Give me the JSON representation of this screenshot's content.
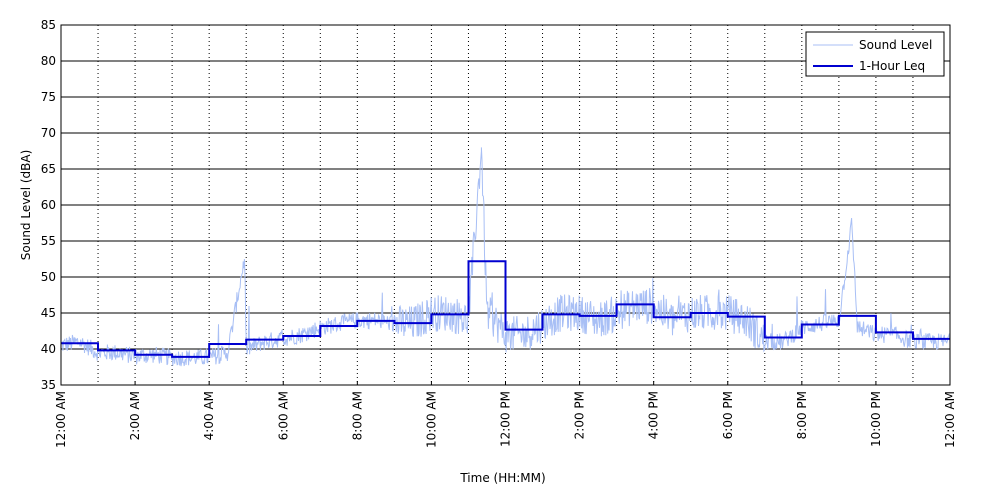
{
  "chart_data": {
    "type": "line",
    "title": "",
    "xlabel": "Time (HH:MM)",
    "ylabel": "Sound Level (dBA)",
    "ylim": [
      35,
      85
    ],
    "yticks": [
      35,
      40,
      45,
      50,
      55,
      60,
      65,
      70,
      75,
      80,
      85
    ],
    "xlim": [
      0,
      24
    ],
    "xtick_hours": [
      0,
      2,
      4,
      6,
      8,
      10,
      12,
      14,
      16,
      18,
      20,
      22,
      24
    ],
    "xtick_labels": [
      "12:00 AM",
      "2:00 AM",
      "4:00 AM",
      "6:00 AM",
      "8:00 AM",
      "10:00 AM",
      "12:00 PM",
      "2:00 PM",
      "4:00 PM",
      "6:00 PM",
      "8:00 PM",
      "10:00 PM",
      "12:00 AM"
    ],
    "grid": "horizontal solid, vertical dotted",
    "legend_position": "top-right",
    "colors": {
      "sound_level": "#a8bff5",
      "leq": "#0000d0"
    },
    "series": [
      {
        "name": "Sound Level",
        "hours": [
          0,
          0.5,
          1,
          1.5,
          2,
          2.5,
          3,
          3.5,
          4,
          4.5,
          4.95,
          5,
          5.5,
          6,
          6.5,
          7,
          7.5,
          8,
          8.5,
          9,
          9.5,
          10,
          10.5,
          11,
          11.35,
          11.5,
          11.7,
          12,
          12.5,
          13,
          13.5,
          14,
          14.5,
          15,
          15.5,
          16,
          16.5,
          17,
          17.5,
          18,
          18.5,
          19,
          19.5,
          20,
          20.5,
          21,
          21.35,
          21.5,
          22,
          22.5,
          23,
          23.5,
          24
        ],
        "values": [
          40.5,
          41,
          39.5,
          39.5,
          39,
          39.2,
          38.8,
          38.8,
          38.8,
          39.5,
          52.5,
          40,
          41,
          41.5,
          42,
          43,
          43.5,
          44,
          44,
          43.5,
          43.5,
          45,
          45,
          44,
          68,
          45,
          44,
          42,
          42,
          43.5,
          45,
          45,
          44,
          45,
          46,
          46,
          44,
          45,
          45,
          45,
          44,
          41,
          41,
          43,
          43.5,
          44,
          57.5,
          43,
          42,
          42,
          41,
          41,
          41
        ]
      },
      {
        "name": "1-Hour Leq",
        "hours": [
          0,
          1,
          2,
          3,
          4,
          5,
          6,
          7,
          8,
          9,
          10,
          11,
          12,
          13,
          14,
          15,
          16,
          17,
          18,
          19,
          20,
          21,
          22,
          23
        ],
        "values": [
          40.8,
          39.8,
          39.2,
          38.9,
          40.7,
          41.3,
          41.8,
          43.2,
          43.9,
          43.6,
          44.8,
          52.2,
          42.7,
          44.8,
          44.6,
          46.2,
          44.4,
          45.0,
          44.5,
          41.6,
          43.4,
          44.6,
          42.3,
          41.4
        ]
      }
    ]
  }
}
